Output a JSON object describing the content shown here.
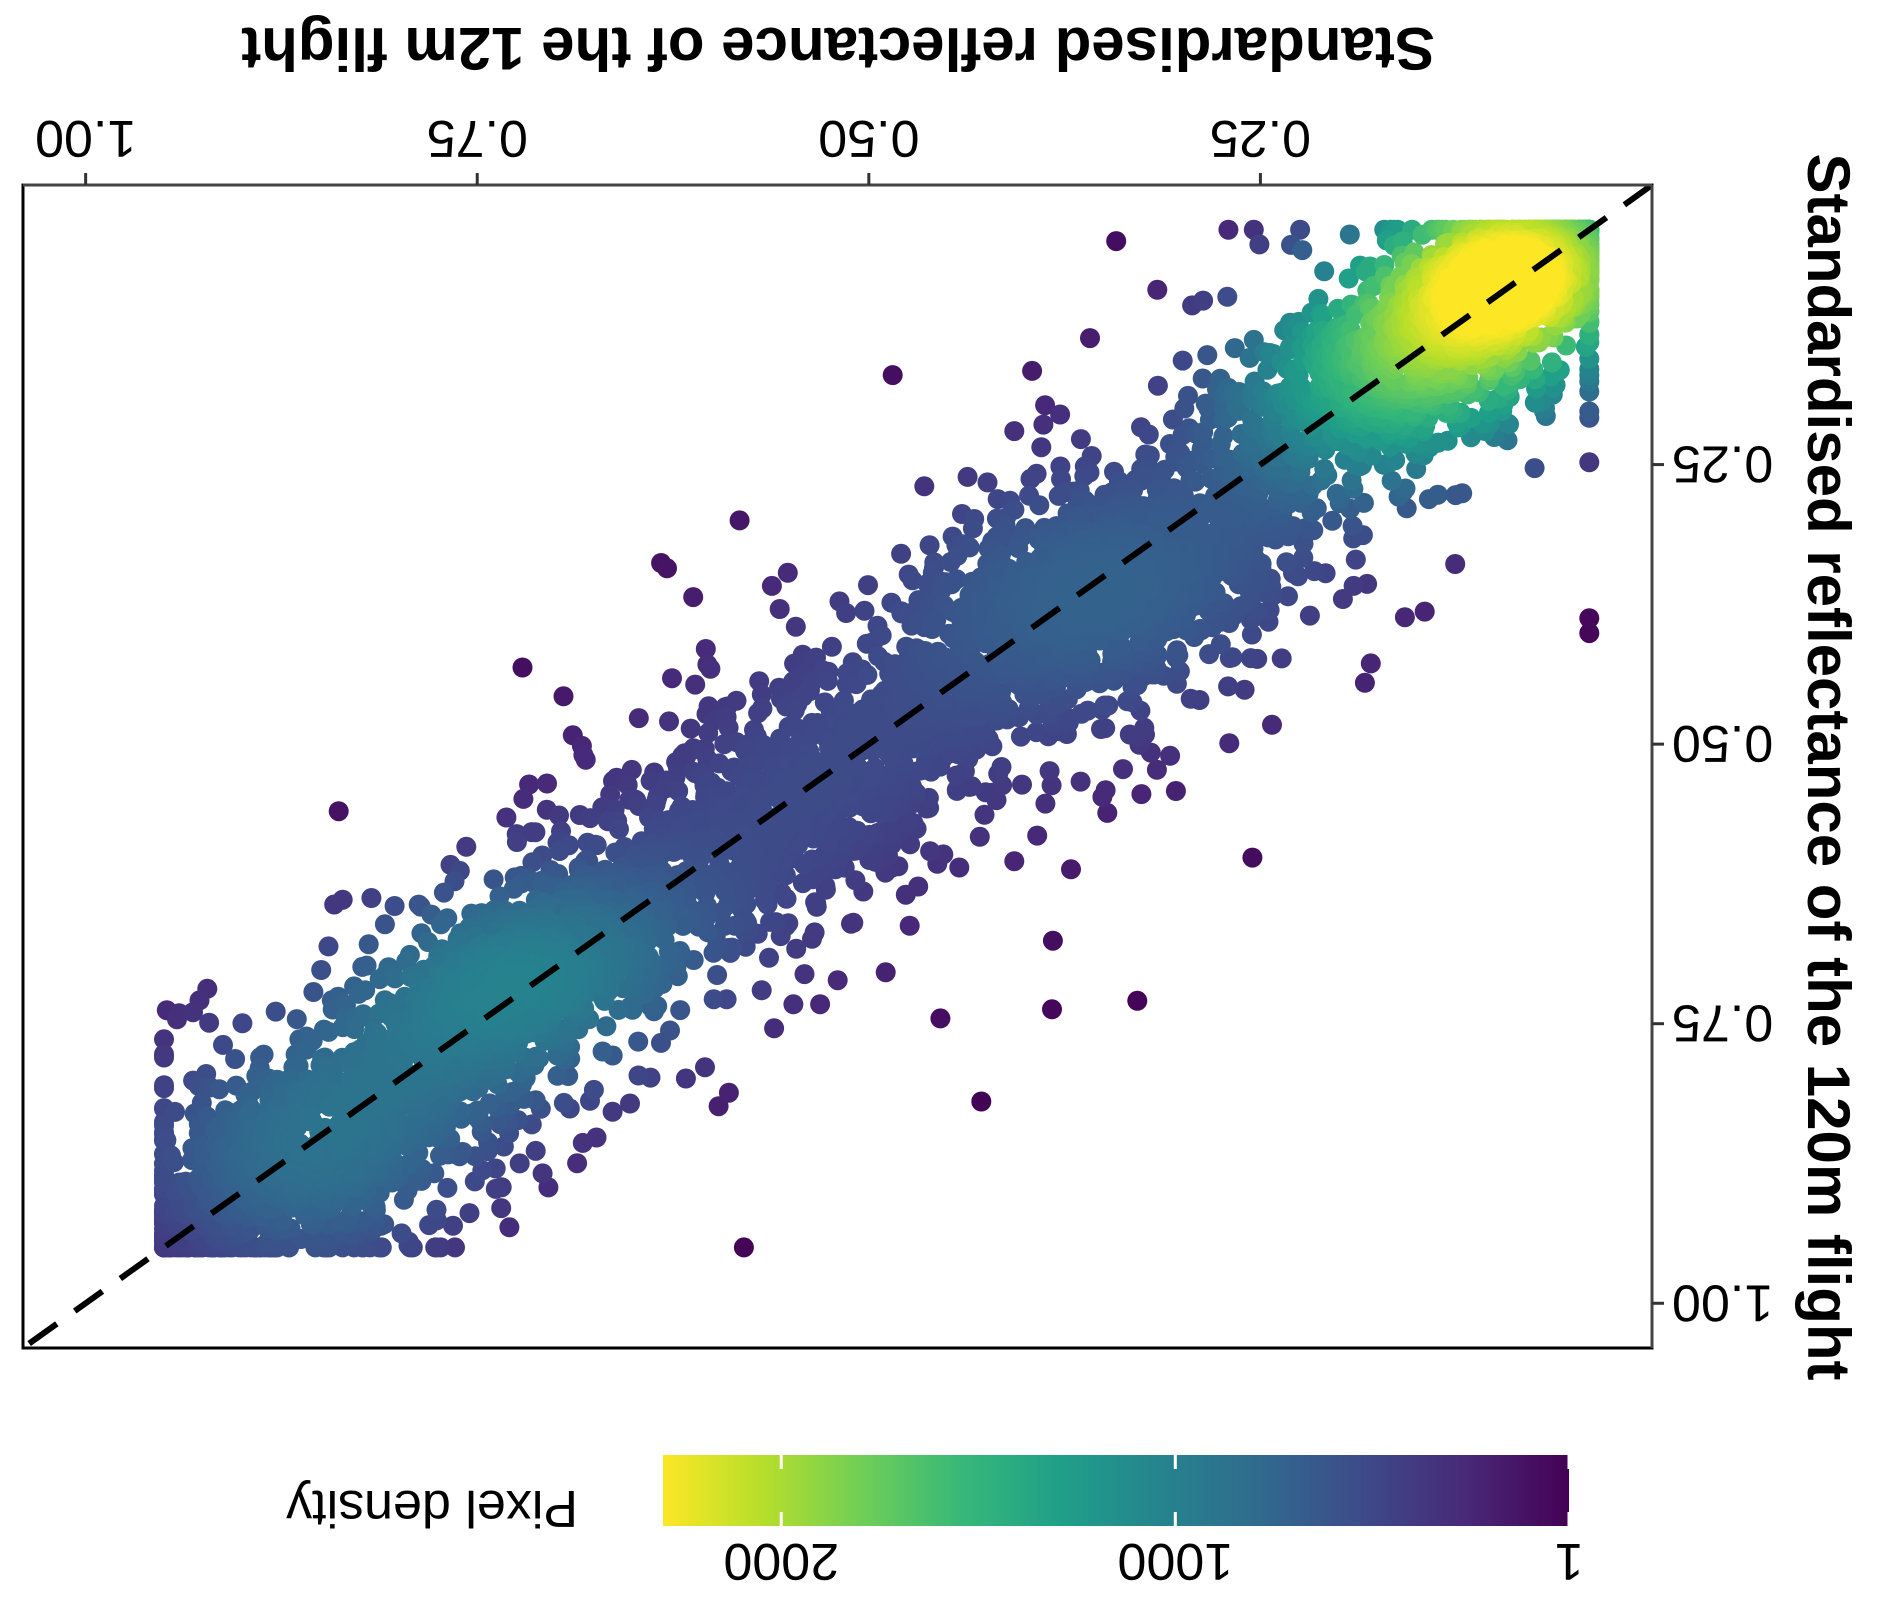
{
  "chart_data": {
    "type": "scatter",
    "xlabel": "Standardised reflectance of the 12m flight",
    "ylabel": "Standardised reflectance of the 120m flight",
    "xlim": [
      0.0,
      1.04
    ],
    "ylim": [
      0.0,
      1.04
    ],
    "x_ticks": [
      0.25,
      0.5,
      0.75,
      1.0
    ],
    "x_tick_labels": [
      "0.25",
      "0.50",
      "0.75",
      "1.00"
    ],
    "y_ticks": [
      0.25,
      0.5,
      0.75,
      1.0
    ],
    "y_tick_labels": [
      "0.25",
      "0.50",
      "0.75",
      "1.00"
    ],
    "grid": false,
    "reference_line": {
      "type": "1:1",
      "style": "dashed",
      "color": "#000000"
    },
    "density_clusters": [
      {
        "x": 0.08,
        "y": 0.07,
        "sx": 0.045,
        "sy": 0.045,
        "weight": 0.22,
        "density": 1900
      },
      {
        "x": 0.16,
        "y": 0.16,
        "sx": 0.06,
        "sy": 0.06,
        "weight": 0.12,
        "density": 1500
      },
      {
        "x": 0.35,
        "y": 0.36,
        "sx": 0.09,
        "sy": 0.08,
        "weight": 0.22,
        "density": 700
      },
      {
        "x": 0.55,
        "y": 0.55,
        "sx": 0.08,
        "sy": 0.08,
        "weight": 0.12,
        "density": 450
      },
      {
        "x": 0.72,
        "y": 0.71,
        "sx": 0.07,
        "sy": 0.06,
        "weight": 0.16,
        "density": 900
      },
      {
        "x": 0.86,
        "y": 0.87,
        "sx": 0.07,
        "sy": 0.07,
        "weight": 0.16,
        "density": 800
      }
    ],
    "legend": {
      "title": "Pixel density",
      "placement": "bottom",
      "range": [
        1,
        2300
      ],
      "tick_values": [
        1,
        1000,
        2000
      ],
      "tick_labels": [
        "1",
        "1000",
        "2000"
      ],
      "colormap": [
        "#440154",
        "#482878",
        "#3e4989",
        "#31688e",
        "#26828e",
        "#1f9e89",
        "#35b779",
        "#6ece58",
        "#b5de2b",
        "#fde725"
      ]
    }
  }
}
